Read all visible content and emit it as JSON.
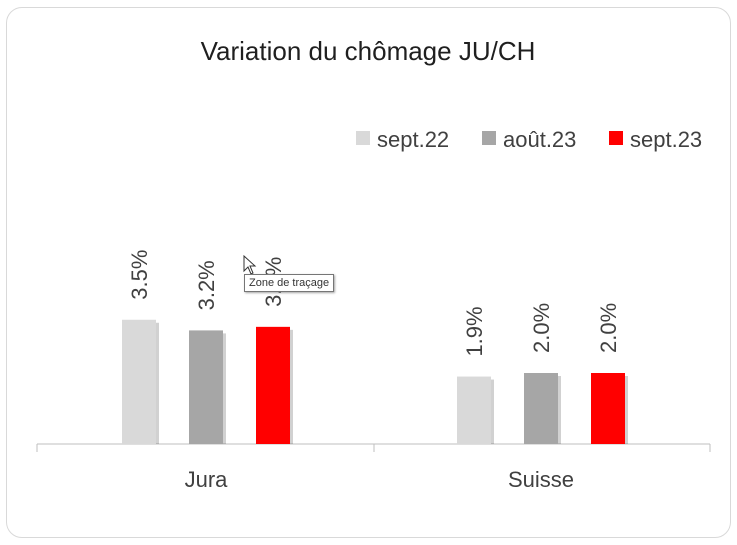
{
  "chart_data": {
    "type": "bar",
    "title": "Variation du chômage JU/CH",
    "categories": [
      "Jura",
      "Suisse"
    ],
    "series": [
      {
        "name": "sept.22",
        "color": "#d9d9d9",
        "values": [
          3.5,
          1.9
        ],
        "labels": [
          "3.5%",
          "1.9%"
        ]
      },
      {
        "name": "août.23",
        "color": "#a6a6a6",
        "values": [
          3.2,
          2.0
        ],
        "labels": [
          "3.2%",
          "2.0%"
        ]
      },
      {
        "name": "sept.23",
        "color": "#ff0000",
        "values": [
          3.3,
          2.0
        ],
        "labels": [
          "3.3%",
          "2.0%"
        ]
      }
    ],
    "ylim": [
      0,
      3.5
    ],
    "legend": "top-right",
    "grid": false
  },
  "tooltip": {
    "text": "Zone de traçage"
  },
  "icons": {
    "cursor": "mouse-pointer-icon"
  }
}
